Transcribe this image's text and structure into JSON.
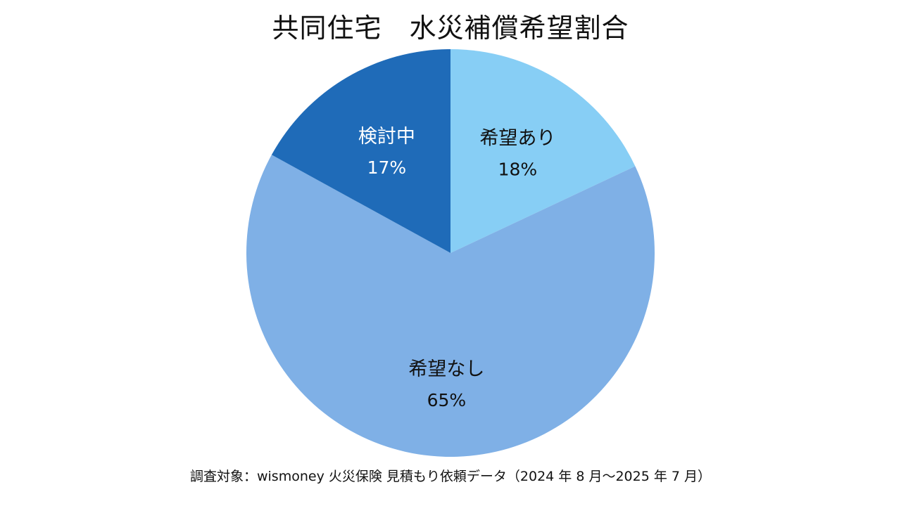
{
  "chart_data": {
    "type": "pie",
    "title": "共同住宅　水災補償希望割合",
    "slices": [
      {
        "label": "希望あり",
        "value": 18,
        "value_label": "18%",
        "color": "#87CEF5",
        "text_color": "#111111"
      },
      {
        "label": "希望なし",
        "value": 65,
        "value_label": "65%",
        "color": "#7FB0E6",
        "text_color": "#111111"
      },
      {
        "label": "検討中",
        "value": 17,
        "value_label": "17%",
        "color": "#1F6BB8",
        "text_color": "#ffffff"
      }
    ],
    "start_angle": "12 o'clock",
    "direction": "clockwise",
    "legend": "none",
    "footnote": "調査対象：wismoney 火災保険 見積もり依頼データ（2024 年 8 月〜2025 年 7 月）"
  }
}
